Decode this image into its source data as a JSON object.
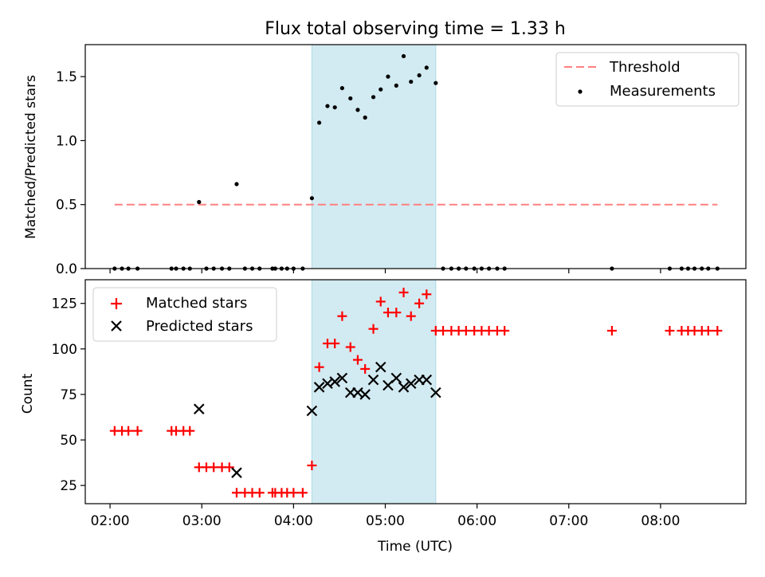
{
  "figure": {
    "title": "Flux total observing time = 1.33 h",
    "xlabel": "Time (UTC)"
  },
  "colors": {
    "highlight": "#add8e6",
    "threshold": "#ff8080",
    "measurements": "#000000",
    "matched": "#ff0000",
    "predicted": "#000000"
  },
  "chart_data": [
    {
      "type": "scatter",
      "ylabel": "Matched/Predicted stars",
      "xlim_hours": [
        1.73,
        8.93
      ],
      "ylim": [
        0,
        1.75
      ],
      "x_ticks": [
        "02:00",
        "03:00",
        "04:00",
        "05:00",
        "06:00",
        "07:00",
        "08:00"
      ],
      "y_ticks": [
        "0.0",
        "0.5",
        "1.0",
        "1.5"
      ],
      "highlight_span_hours": [
        4.2,
        5.55
      ],
      "legend": {
        "placement": "upper right",
        "entries": [
          "Threshold",
          "Measurements"
        ]
      },
      "threshold": {
        "name": "Threshold",
        "y": 0.5,
        "x_hours": [
          2.05,
          8.62
        ]
      },
      "series": [
        {
          "name": "Measurements",
          "x_hours": [
            2.05,
            2.13,
            2.2,
            2.3,
            2.67,
            2.72,
            2.8,
            2.87,
            2.97,
            3.05,
            3.13,
            3.22,
            3.3,
            3.38,
            3.47,
            3.55,
            3.63,
            3.77,
            3.8,
            3.87,
            3.93,
            4.0,
            4.1,
            4.2,
            4.28,
            4.37,
            4.45,
            4.53,
            4.62,
            4.7,
            4.78,
            4.87,
            4.95,
            5.03,
            5.12,
            5.2,
            5.28,
            5.37,
            5.45,
            5.55,
            5.63,
            5.72,
            5.8,
            5.88,
            5.97,
            6.05,
            6.13,
            6.22,
            6.3,
            7.47,
            8.1,
            8.23,
            8.3,
            8.37,
            8.45,
            8.52,
            8.62
          ],
          "y": [
            0,
            0,
            0,
            0,
            0,
            0,
            0,
            0,
            0.52,
            0,
            0,
            0,
            0,
            0.66,
            0,
            0,
            0,
            0,
            0,
            0,
            0,
            0,
            0,
            0.55,
            1.14,
            1.27,
            1.26,
            1.41,
            1.33,
            1.24,
            1.18,
            1.34,
            1.4,
            1.5,
            1.43,
            1.66,
            1.46,
            1.51,
            1.57,
            1.45,
            0,
            0,
            0,
            0,
            0,
            0,
            0,
            0,
            0,
            0,
            0,
            0,
            0,
            0,
            0,
            0,
            0
          ]
        }
      ]
    },
    {
      "type": "scatter",
      "ylabel": "Count",
      "xlim_hours": [
        1.73,
        8.93
      ],
      "ylim": [
        15,
        138
      ],
      "x_ticks": [
        "02:00",
        "03:00",
        "04:00",
        "05:00",
        "06:00",
        "07:00",
        "08:00"
      ],
      "y_ticks": [
        "25",
        "50",
        "75",
        "100",
        "125"
      ],
      "highlight_span_hours": [
        4.2,
        5.55
      ],
      "legend": {
        "placement": "upper left",
        "entries": [
          "Matched stars",
          "Predicted stars"
        ]
      },
      "series": [
        {
          "name": "Matched stars",
          "x_hours": [
            2.05,
            2.13,
            2.2,
            2.3,
            2.67,
            2.72,
            2.8,
            2.87,
            2.97,
            3.05,
            3.13,
            3.22,
            3.3,
            3.38,
            3.47,
            3.55,
            3.63,
            3.77,
            3.8,
            3.87,
            3.93,
            4.0,
            4.1,
            4.2,
            4.28,
            4.37,
            4.45,
            4.53,
            4.62,
            4.7,
            4.78,
            4.87,
            4.95,
            5.03,
            5.12,
            5.2,
            5.28,
            5.37,
            5.45,
            5.55,
            5.63,
            5.72,
            5.8,
            5.88,
            5.97,
            6.05,
            6.13,
            6.22,
            6.3,
            7.47,
            8.1,
            8.23,
            8.3,
            8.37,
            8.45,
            8.52,
            8.62
          ],
          "y": [
            55,
            55,
            55,
            55,
            55,
            55,
            55,
            55,
            35,
            35,
            35,
            35,
            35,
            21,
            21,
            21,
            21,
            21,
            21,
            21,
            21,
            21,
            21,
            36,
            90,
            103,
            103,
            118,
            101,
            94,
            89,
            111,
            126,
            120,
            120,
            131,
            118,
            125,
            130,
            110,
            110,
            110,
            110,
            110,
            110,
            110,
            110,
            110,
            110,
            110,
            110,
            110,
            110,
            110,
            110,
            110,
            110
          ]
        },
        {
          "name": "Predicted stars",
          "x_hours": [
            2.97,
            3.38,
            4.2,
            4.28,
            4.37,
            4.45,
            4.53,
            4.62,
            4.7,
            4.78,
            4.87,
            4.95,
            5.03,
            5.12,
            5.2,
            5.28,
            5.37,
            5.45,
            5.55
          ],
          "y": [
            67,
            32,
            66,
            79,
            81,
            82,
            84,
            76,
            76,
            75,
            83,
            90,
            80,
            84,
            79,
            81,
            83,
            83,
            76
          ]
        }
      ]
    }
  ]
}
